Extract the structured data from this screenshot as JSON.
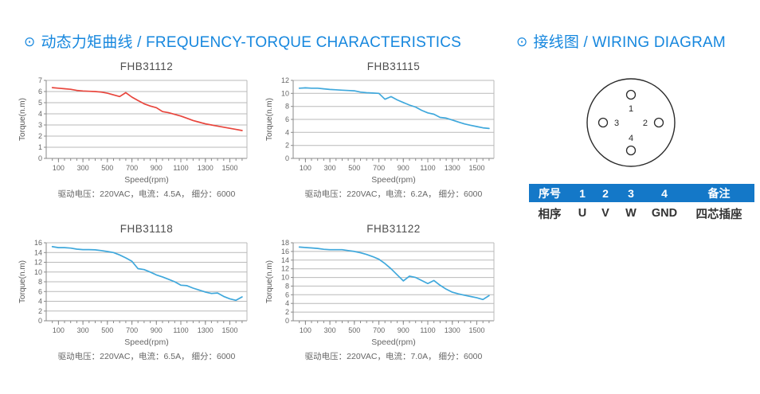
{
  "sections": {
    "charts": {
      "icon": "circle-dot",
      "title": "动态力矩曲线 / FREQUENCY-TORQUE CHARACTERISTICS"
    },
    "wiring": {
      "icon": "circle-dot",
      "title": "接线图 / WIRING DIAGRAM"
    }
  },
  "colors": {
    "accent_blue": "#1687de",
    "table_header_bg": "#1478c8",
    "curve_red": "#e8453c",
    "curve_blue": "#3fa8dc",
    "grid": "#b9b9b9",
    "axis": "#8a8a8a"
  },
  "chart_data": [
    {
      "type": "line",
      "title": "FHB31112",
      "ylabel": "Torque(n.m)",
      "xlabel": "Speed(rpm)",
      "caption": "驱动电压：220VAC，电流：4.5A， 细分：6000",
      "color": "#e8453c",
      "xlim": [
        0,
        1640
      ],
      "ylim": [
        0,
        7
      ],
      "ytick_step": 1,
      "xticks": [
        100,
        300,
        500,
        700,
        900,
        1100,
        1300,
        1500
      ],
      "grid": true,
      "legend": "none",
      "x": [
        50,
        100,
        150,
        200,
        250,
        300,
        350,
        400,
        450,
        500,
        550,
        600,
        650,
        700,
        750,
        800,
        850,
        900,
        950,
        1000,
        1050,
        1100,
        1150,
        1200,
        1250,
        1300,
        1350,
        1400,
        1450,
        1500,
        1550,
        1600
      ],
      "y": [
        6.35,
        6.3,
        6.25,
        6.2,
        6.1,
        6.05,
        6.02,
        6.0,
        5.95,
        5.85,
        5.7,
        5.55,
        5.9,
        5.5,
        5.2,
        4.9,
        4.7,
        4.55,
        4.2,
        4.1,
        3.95,
        3.8,
        3.6,
        3.4,
        3.25,
        3.1,
        3.0,
        2.9,
        2.8,
        2.7,
        2.6,
        2.5
      ]
    },
    {
      "type": "line",
      "title": "FHB31115",
      "ylabel": "Torque(n.m)",
      "xlabel": "Speed(rpm)",
      "caption": "驱动电压：220VAC，电流：6.2A， 细分：6000",
      "color": "#3fa8dc",
      "xlim": [
        0,
        1640
      ],
      "ylim": [
        0,
        12
      ],
      "ytick_step": 2,
      "xticks": [
        100,
        300,
        500,
        700,
        900,
        1100,
        1300,
        1500
      ],
      "grid": true,
      "legend": "none",
      "x": [
        50,
        100,
        150,
        200,
        250,
        300,
        350,
        400,
        450,
        500,
        550,
        600,
        650,
        700,
        750,
        800,
        850,
        900,
        950,
        1000,
        1050,
        1100,
        1150,
        1200,
        1250,
        1300,
        1350,
        1400,
        1450,
        1500,
        1550,
        1600
      ],
      "y": [
        10.8,
        10.85,
        10.8,
        10.8,
        10.7,
        10.6,
        10.55,
        10.5,
        10.45,
        10.4,
        10.2,
        10.1,
        10.05,
        10.0,
        9.1,
        9.5,
        9.0,
        8.6,
        8.2,
        7.9,
        7.4,
        7.0,
        6.8,
        6.3,
        6.2,
        5.9,
        5.6,
        5.3,
        5.1,
        4.9,
        4.7,
        4.6
      ]
    },
    {
      "type": "line",
      "title": "FHB31118",
      "ylabel": "Torque(n.m)",
      "xlabel": "Speed(rpm)",
      "caption": "驱动电压：220VAC，电流：6.5A， 细分：6000",
      "color": "#3fa8dc",
      "xlim": [
        0,
        1640
      ],
      "ylim": [
        0,
        16
      ],
      "ytick_step": 2,
      "xticks": [
        100,
        300,
        500,
        700,
        900,
        1100,
        1300,
        1500
      ],
      "grid": true,
      "legend": "none",
      "x": [
        50,
        100,
        150,
        200,
        250,
        300,
        350,
        400,
        450,
        500,
        550,
        600,
        650,
        700,
        750,
        800,
        850,
        900,
        950,
        1000,
        1050,
        1100,
        1150,
        1200,
        1250,
        1300,
        1350,
        1400,
        1450,
        1500,
        1550,
        1600
      ],
      "y": [
        15.2,
        15.0,
        15.0,
        14.9,
        14.7,
        14.6,
        14.6,
        14.55,
        14.4,
        14.2,
        14.0,
        13.5,
        12.9,
        12.2,
        10.7,
        10.5,
        10.0,
        9.4,
        9.0,
        8.5,
        8.0,
        7.3,
        7.2,
        6.7,
        6.3,
        5.9,
        5.6,
        5.7,
        5.0,
        4.5,
        4.2,
        4.9
      ]
    },
    {
      "type": "line",
      "title": "FHB31122",
      "ylabel": "Torque(n.m)",
      "xlabel": "Speed(rpm)",
      "caption": "驱动电压：220VAC，电流：7.0A， 细分：6000",
      "color": "#3fa8dc",
      "xlim": [
        0,
        1640
      ],
      "ylim": [
        0,
        18
      ],
      "ytick_step": 2,
      "xticks": [
        100,
        300,
        500,
        700,
        900,
        1100,
        1300,
        1500
      ],
      "grid": true,
      "legend": "none",
      "x": [
        50,
        100,
        150,
        200,
        250,
        300,
        350,
        400,
        450,
        500,
        550,
        600,
        650,
        700,
        750,
        800,
        850,
        900,
        950,
        1000,
        1050,
        1100,
        1150,
        1200,
        1250,
        1300,
        1350,
        1400,
        1450,
        1500,
        1550,
        1600
      ],
      "y": [
        17.0,
        16.9,
        16.8,
        16.7,
        16.5,
        16.4,
        16.4,
        16.4,
        16.2,
        16.0,
        15.7,
        15.3,
        14.8,
        14.2,
        13.2,
        12.0,
        10.6,
        9.2,
        10.3,
        10.0,
        9.3,
        8.6,
        9.3,
        8.2,
        7.3,
        6.6,
        6.2,
        5.9,
        5.6,
        5.3,
        4.9,
        5.8
      ]
    }
  ],
  "wiring": {
    "pins": [
      "1",
      "2",
      "3",
      "4"
    ],
    "table": {
      "header": [
        "序号",
        "1",
        "2",
        "3",
        "4",
        "备注"
      ],
      "row": [
        "相序",
        "U",
        "V",
        "W",
        "GND",
        "四芯插座"
      ]
    }
  }
}
